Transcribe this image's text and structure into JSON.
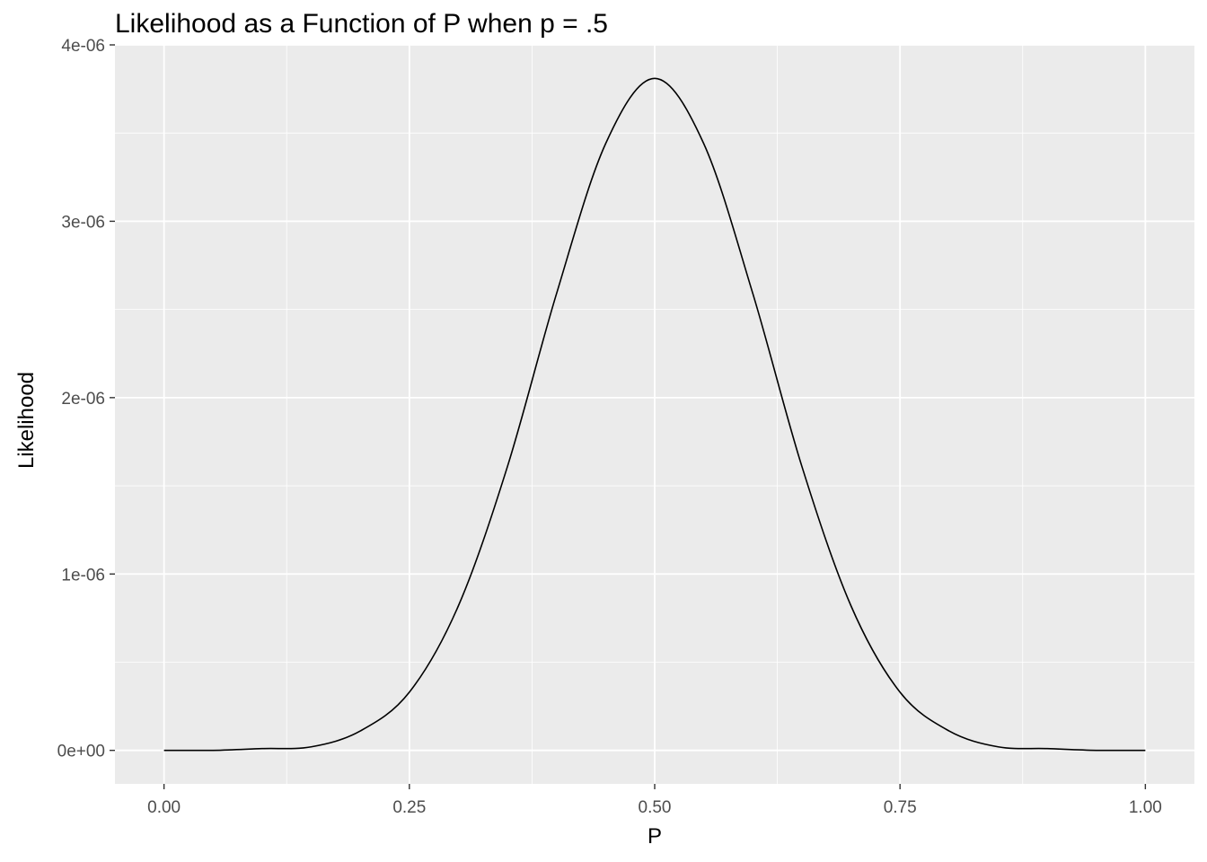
{
  "chart_data": {
    "type": "line",
    "title": "Likelihood as a Function of P when p = .5",
    "xlabel": "P",
    "ylabel": "Likelihood",
    "xlim": [
      -0.05,
      1.05
    ],
    "ylim": [
      -1.9e-07,
      4e-06
    ],
    "x_ticks": [
      0,
      0.25,
      0.5,
      0.75,
      1
    ],
    "x_tick_labels": [
      "0.00",
      "0.25",
      "0.50",
      "0.75",
      "1.00"
    ],
    "y_ticks": [
      0,
      1e-06,
      2e-06,
      3e-06,
      4e-06
    ],
    "y_tick_labels": [
      "0e+00",
      "1e-06",
      "2e-06",
      "3e-06",
      "4e-06"
    ],
    "grid": true,
    "legend": "none",
    "colors": {
      "panel": "#ebebeb",
      "grid": "#ffffff",
      "line": "#000000",
      "tick_text": "#4d4d4d"
    },
    "series": [
      {
        "x": [
          0,
          0.05,
          0.1,
          0.15,
          0.2,
          0.25,
          0.3,
          0.35,
          0.4,
          0.45,
          0.5,
          0.55,
          0.6,
          0.65,
          0.7,
          0.75,
          0.8,
          0.85,
          0.9,
          0.95,
          1
        ],
        "y": [
          0,
          0,
          1e-08,
          2e-08,
          1.1e-07,
          3.3e-07,
          8.2e-07,
          1.61e-06,
          2.59e-06,
          3.44e-06,
          3.81e-06,
          3.44e-06,
          2.59e-06,
          1.61e-06,
          8.2e-07,
          3.3e-07,
          1.1e-07,
          2e-08,
          1e-08,
          0,
          0
        ]
      }
    ]
  }
}
